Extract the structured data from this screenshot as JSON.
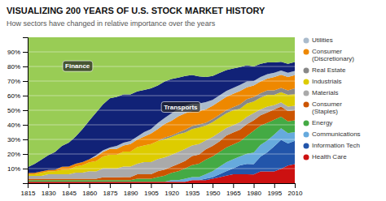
{
  "chart_data": {
    "type": "area",
    "title": "VISUALIZING 200 YEARS OF U.S. STOCK MARKET HISTORY",
    "subtitle": "How sectors have changed in relative importance over the years",
    "x": [
      1815,
      1820,
      1825,
      1830,
      1835,
      1840,
      1845,
      1850,
      1855,
      1860,
      1865,
      1870,
      1875,
      1880,
      1885,
      1890,
      1895,
      1900,
      1905,
      1910,
      1915,
      1920,
      1925,
      1930,
      1935,
      1940,
      1945,
      1950,
      1955,
      1960,
      1965,
      1970,
      1975,
      1980,
      1985,
      1990,
      1995,
      2000,
      2005,
      2010
    ],
    "series": [
      {
        "name": "Health Care",
        "color": "#cc1111",
        "values": [
          1,
          1.01,
          1.01,
          1.01,
          1.02,
          1.02,
          1.03,
          1.03,
          1.03,
          1.02,
          1.01,
          1.02,
          1.02,
          1.02,
          1.03,
          1.03,
          1.03,
          1.03,
          1.03,
          1.03,
          1.0416,
          1.02,
          1.02,
          1.02,
          2.06,
          2.06,
          2.02,
          3.06,
          4.08,
          5.1,
          6.12,
          6.12,
          6.06,
          6,
          8.08,
          8.08,
          8.08,
          9.9,
          12.12,
          13
        ]
      },
      {
        "name": "Information Tech",
        "color": "#2255aa",
        "values": [
          0,
          0,
          0,
          0,
          0,
          0,
          0,
          0,
          0,
          0,
          0,
          0,
          0,
          0,
          0,
          0,
          0,
          0,
          0,
          0,
          0,
          0,
          0,
          0,
          0,
          0,
          1.01,
          1.02,
          2.04,
          3.06,
          4.08,
          6.12,
          7.07,
          7,
          10.1,
          13.13,
          17.17,
          19.8,
          15.15,
          16
        ]
      },
      {
        "name": "Communications",
        "color": "#66aadd",
        "values": [
          0,
          0,
          0,
          0,
          0,
          0,
          0,
          0,
          0,
          0,
          0,
          0,
          0,
          0,
          0,
          0,
          0,
          0,
          0,
          0,
          0,
          1.02,
          1.02,
          2.04,
          2.06,
          2.06,
          3.03,
          4.08,
          5.1,
          6.12,
          6.12,
          6.12,
          7.07,
          8,
          8.08,
          8.08,
          8.08,
          7.92,
          7.07,
          6
        ]
      },
      {
        "name": "Energy",
        "color": "#44aa44",
        "values": [
          1,
          1.01,
          1.01,
          1.01,
          1.02,
          1.02,
          1.03,
          1.03,
          1.03,
          1.02,
          1.01,
          1.02,
          1.02,
          1.02,
          1.03,
          1.03,
          2.06,
          2.06,
          2.06,
          3.09,
          4.1666,
          5.1,
          6.12,
          7.14,
          8.25,
          9.28,
          10.1,
          10.2,
          10.2,
          10.2,
          10.2,
          10.2,
          12.12,
          15,
          13.13,
          12.12,
          10.1,
          7.92,
          8.08,
          8
        ]
      },
      {
        "name": "Consumer\n(Staples)",
        "color": "#cc5500",
        "values": [
          1,
          1.01,
          1.01,
          1.01,
          1.02,
          1.02,
          1.03,
          1.03,
          1.03,
          1.02,
          1.01,
          2.04,
          2.04,
          2.04,
          2.06,
          2.06,
          3.09,
          3.09,
          3.09,
          4.12,
          4.1666,
          4.08,
          5.1,
          5.1,
          6.19,
          6.19,
          7.07,
          7.14,
          7.14,
          8.16,
          8.16,
          8.16,
          8.08,
          7,
          7.07,
          7.07,
          7.07,
          6.93,
          7.07,
          7
        ]
      },
      {
        "name": "Materials",
        "color": "#aaaaaa",
        "values": [
          2,
          2.02,
          2.02,
          3.03,
          3.06,
          3.06,
          3.09,
          4.12,
          4.12,
          5.1,
          5.05,
          6.12,
          6.12,
          6.12,
          7.22,
          7.22,
          7.22,
          8.25,
          8.25,
          8.25,
          8.3333,
          8.16,
          8.16,
          8.16,
          7.22,
          7.22,
          6.06,
          6.12,
          6.12,
          5.1,
          5.1,
          5.1,
          5.05,
          5,
          4.04,
          4.04,
          3.03,
          2.97,
          3.03,
          3
        ]
      },
      {
        "name": "Industrials",
        "color": "#ddcc00",
        "values": [
          1,
          1.01,
          2.02,
          2.02,
          2.04,
          3.06,
          3.09,
          4.12,
          5.15,
          6.12,
          7.07,
          8.16,
          9.18,
          9.18,
          10.31,
          10.31,
          11.34,
          11.34,
          12.37,
          12.37,
          12.5,
          12.24,
          12.24,
          11.22,
          11.34,
          11.34,
          10.1,
          10.2,
          10.2,
          10.2,
          10.2,
          9.18,
          9.09,
          8,
          8.08,
          8.08,
          7.07,
          6.93,
          8.08,
          8
        ]
      },
      {
        "name": "Real Estate",
        "color": "#888888",
        "values": [
          0,
          0,
          0,
          0,
          0,
          0,
          0,
          0,
          0,
          0,
          0,
          0,
          0,
          0,
          0,
          0,
          0,
          0,
          0,
          0,
          1.0416,
          1.02,
          1.02,
          2.04,
          2.06,
          2.06,
          2.02,
          2.04,
          2.04,
          2.04,
          2.04,
          3.06,
          3.03,
          3,
          3.03,
          3.03,
          3.03,
          2.97,
          3.03,
          4
        ]
      },
      {
        "name": "Consumer\n(Discretionary)",
        "color": "#ee8800",
        "values": [
          1,
          1.01,
          1.01,
          1.01,
          1.02,
          2.04,
          2.06,
          2.06,
          2.06,
          2.04,
          3.03,
          3.06,
          4.08,
          4.08,
          4.12,
          5.15,
          5.15,
          6.19,
          7.22,
          8.25,
          9.375,
          10.2,
          11.22,
          11.22,
          10.31,
          9.28,
          9.09,
          9.18,
          9.18,
          9.18,
          9.18,
          9.18,
          8.08,
          8,
          8.08,
          8.08,
          9.09,
          8.91,
          9.09,
          9
        ]
      },
      {
        "name": "Utilities",
        "color": "#aabbcc",
        "values": [
          0,
          0,
          0,
          0,
          0,
          0,
          0,
          0,
          0,
          0,
          1.01,
          1.02,
          1.02,
          2.04,
          2.06,
          2.06,
          2.06,
          3.09,
          3.09,
          4.12,
          4.1666,
          5.1,
          5.1,
          5.1,
          5.15,
          5.15,
          5.05,
          4.08,
          4.08,
          4.08,
          4.08,
          4.08,
          4.04,
          3,
          3.03,
          3.03,
          3.03,
          2.97,
          3.03,
          3
        ]
      },
      {
        "color": "#112277",
        "values": [
          4,
          6.06,
          8.08,
          10.1,
          12.24,
          14.29,
          16.49,
          18.56,
          22.68,
          26.53,
          29.29,
          31.63,
          33.67,
          33.67,
          32.99,
          31.96,
          30.93,
          28.87,
          27.84,
          25.77,
          25,
          23.47,
          21.43,
          20.41,
          19.59,
          18.56,
          17.17,
          16.33,
          15.31,
          14.29,
          13.27,
          12.24,
          11.11,
          10,
          9.09,
          8.08,
          7.07,
          5.94,
          6.06,
          6
        ]
      },
      {
        "color": "#99cc55",
        "values": [
          89,
          86.87,
          83.84,
          80.81,
          78.57,
          74.49,
          72.16,
          68.04,
          62.89,
          57.14,
          51.52,
          45.92,
          41.84,
          40.82,
          39.18,
          39.18,
          37.11,
          36.08,
          35.05,
          32.99,
          30.2083,
          28.57,
          27.55,
          26.53,
          25.77,
          26.8,
          27.27,
          26.53,
          24.49,
          22.45,
          21.43,
          20.41,
          19.19,
          20,
          18.18,
          17.17,
          17.17,
          16.83,
          18.18,
          17
        ]
      }
    ],
    "annotations": [
      {
        "text": "Finance",
        "x": 1840,
        "y": 80
      },
      {
        "text": "Transports",
        "x": 1912,
        "y": 52
      }
    ],
    "xlim": [
      1815,
      2010
    ],
    "ylim": [
      0,
      100
    ],
    "xticks": [
      1815,
      1830,
      1845,
      1860,
      1875,
      1890,
      1905,
      1920,
      1935,
      1950,
      1965,
      1980,
      1995,
      2010
    ],
    "yticks": [
      {
        "value": 10,
        "label": "10%"
      },
      {
        "value": 20,
        "label": "20%"
      },
      {
        "value": 30,
        "label": "30%"
      },
      {
        "value": 40,
        "label": "40%"
      },
      {
        "value": 50,
        "label": "50%"
      },
      {
        "value": 60,
        "label": "60%"
      },
      {
        "value": 70,
        "label": "70%"
      },
      {
        "value": 80,
        "label": "80%"
      },
      {
        "value": 90,
        "label": "90%"
      }
    ],
    "grid": true,
    "stacked": true,
    "legend": "right"
  }
}
